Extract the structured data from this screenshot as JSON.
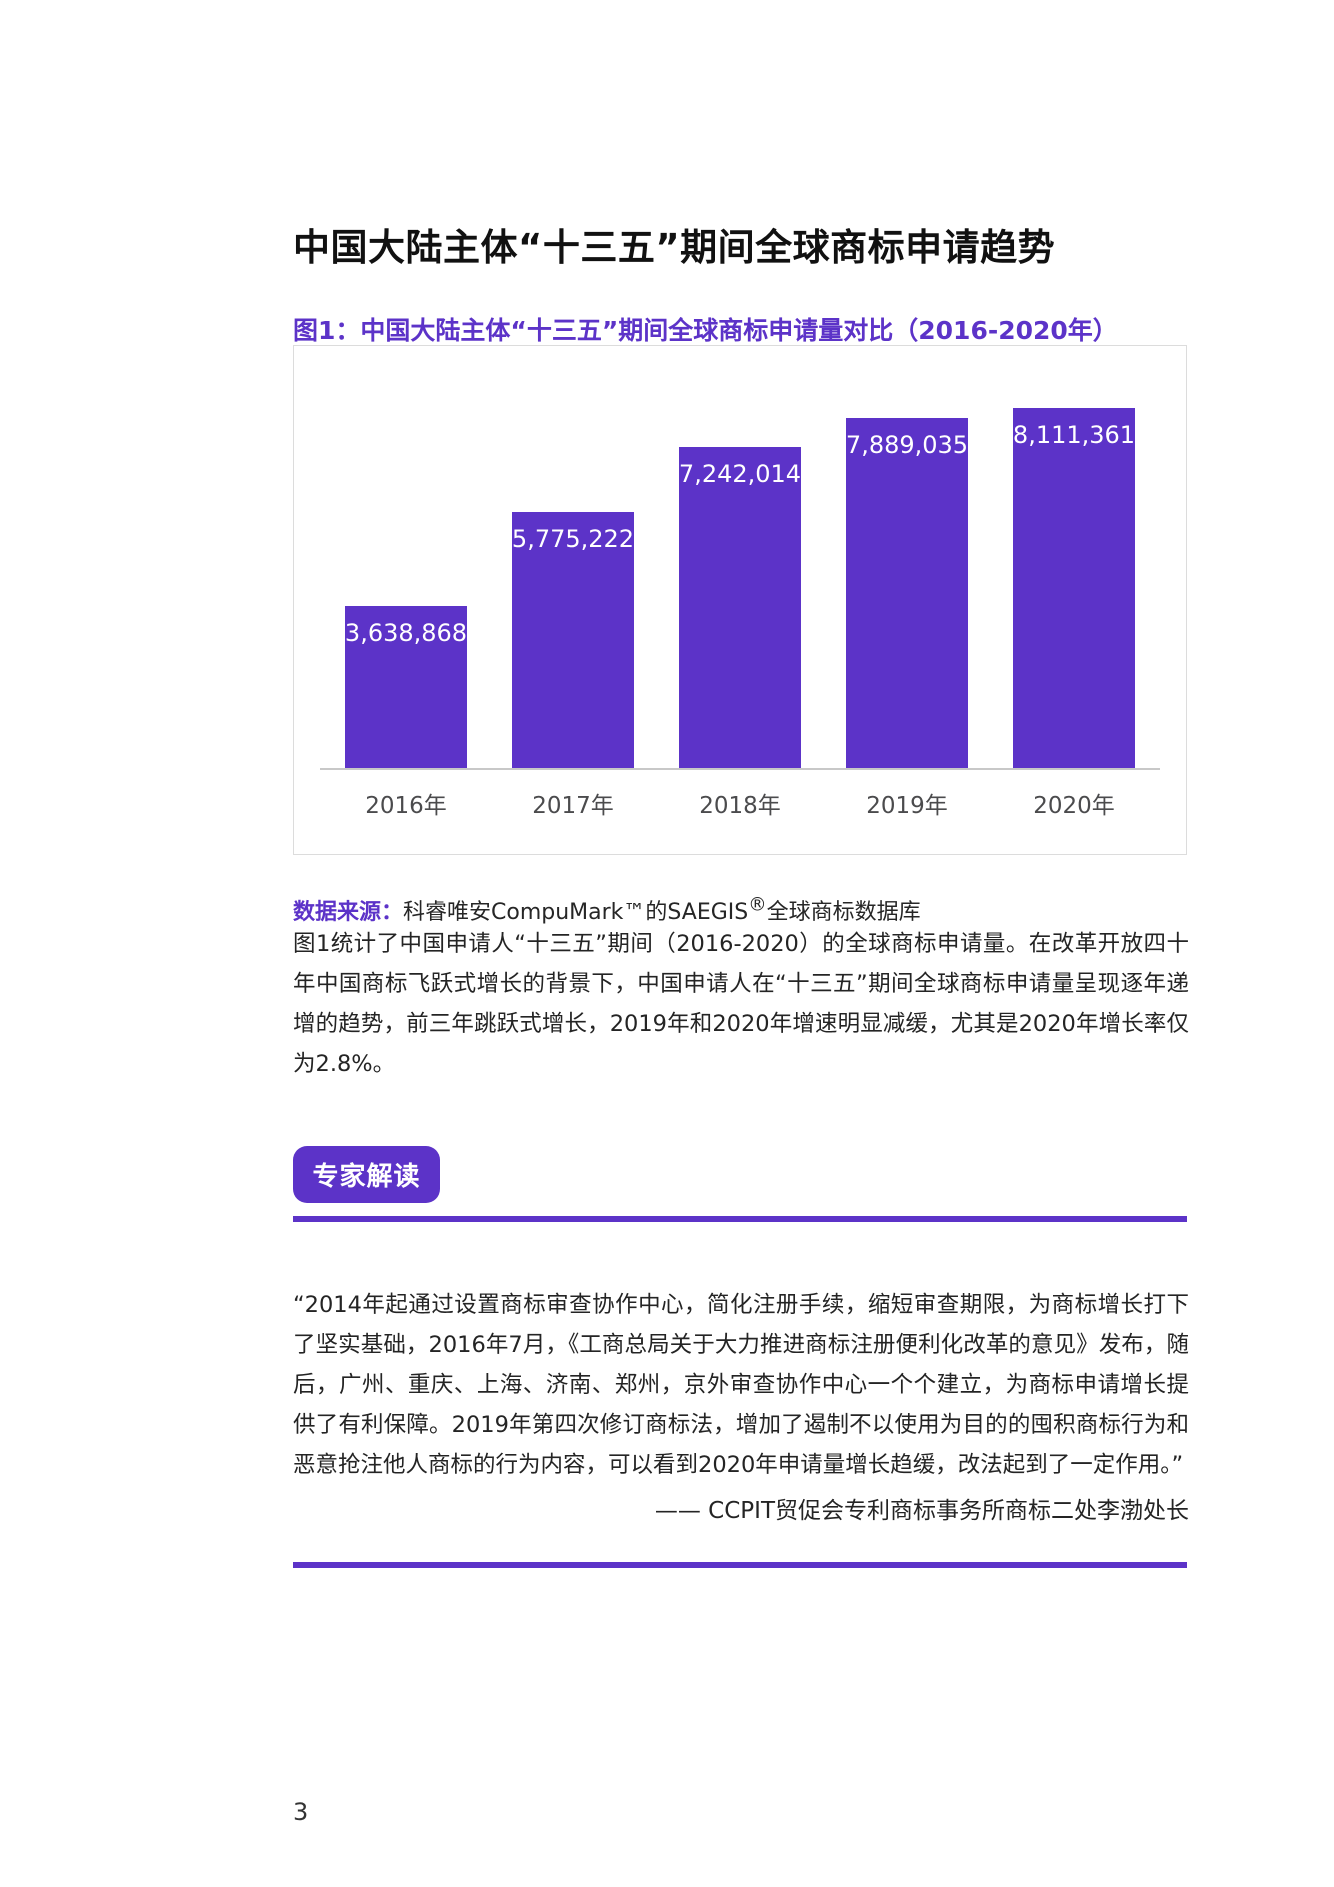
{
  "colors": {
    "accent": "#5C33C8",
    "bar": "#5C33C8",
    "chart_border": "#dcdcdc",
    "axis_line": "#c8c8c8",
    "year_label": "#4b4b4d",
    "text": "#242424"
  },
  "header": {
    "title": "中国大陆主体“十三五”期间全球商标申请趋势"
  },
  "figure": {
    "caption": "图1：中国大陆主体“十三五”期间全球商标申请量对比（2016-2020年）",
    "source_prefix": "数据来源：",
    "source_text": "科睿唯安CompuMark™的SAEGIS",
    "source_sup": "®",
    "source_suffix": "全球商标数据库"
  },
  "chart_data": {
    "type": "bar",
    "title": "图1：中国大陆主体“十三五”期间全球商标申请量对比（2016-2020年）",
    "categories": [
      "2016年",
      "2017年",
      "2018年",
      "2019年",
      "2020年"
    ],
    "values": [
      3638868,
      5775222,
      7242014,
      7889035,
      8111361
    ],
    "value_labels": [
      "3,638,868",
      "5,775,222",
      "7,242,014",
      "7,889,035",
      "8,111,361"
    ],
    "xlabel": "",
    "ylabel": "",
    "ylim": [
      0,
      8111361
    ],
    "grid": false,
    "legend": "none",
    "bar_color": "#5C33C8",
    "value_label_position": "inside-top",
    "value_label_color": "#ffffff"
  },
  "body": {
    "paragraph": "图1统计了中国申请人“十三五”期间（2016-2020）的全球商标申请量。在改革开放四十年中国商标飞跃式增长的背景下，中国申请人在“十三五”期间全球商标申请量呈现逐年递增的趋势，前三年跳跃式增长，2019年和2020年增速明显减缓，尤其是2020年增长率仅为2.8%。"
  },
  "expert": {
    "badge": "专家解读",
    "quote": "“2014年起通过设置商标审查协作中心，简化注册手续，缩短审查期限，为商标增长打下了坚实基础，2016年7月，《工商总局关于大力推进商标注册便利化改革的意见》发布，随后，广州、重庆、上海、济南、郑州，京外审查协作中心一个个建立，为商标申请增长提供了有利保障。2019年第四次修订商标法，增加了遏制不以使用为目的的囤积商标行为和恶意抢注他人商标的行为内容，可以看到2020年申请量增长趋缓，改法起到了一定作用。”",
    "attribution": "—— CCPIT贸促会专利商标事务所商标二处李渤处长"
  },
  "page": {
    "number": "3"
  }
}
